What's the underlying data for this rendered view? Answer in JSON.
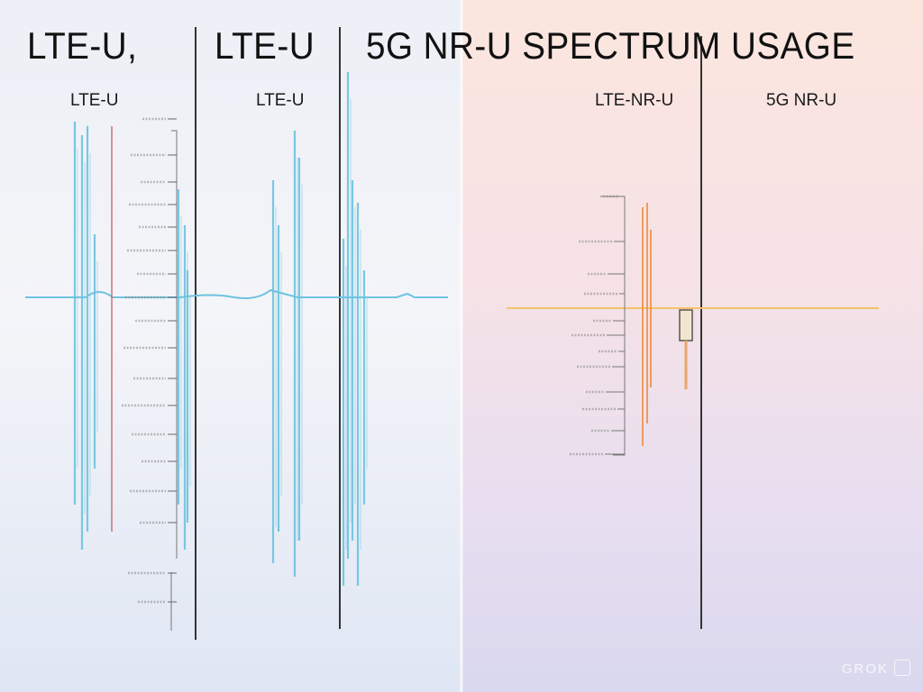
{
  "title_parts": [
    "LTE-U,",
    "LTE-U",
    "5G NR-U SPECTRUM USAGE"
  ],
  "panel_labels": [
    "LTE-U",
    "LTE-U",
    "LTE-NR-U",
    "5G NR-U"
  ],
  "watermark": "GROK",
  "colors": {
    "lte_wave": "#6ec3df",
    "nr_wave_light": "#f5c26a",
    "nr_wave_dark": "#f08a3a",
    "divider": "#333333",
    "tick_text": "#555555"
  },
  "icons": [
    "watermark-logo-icon"
  ]
}
